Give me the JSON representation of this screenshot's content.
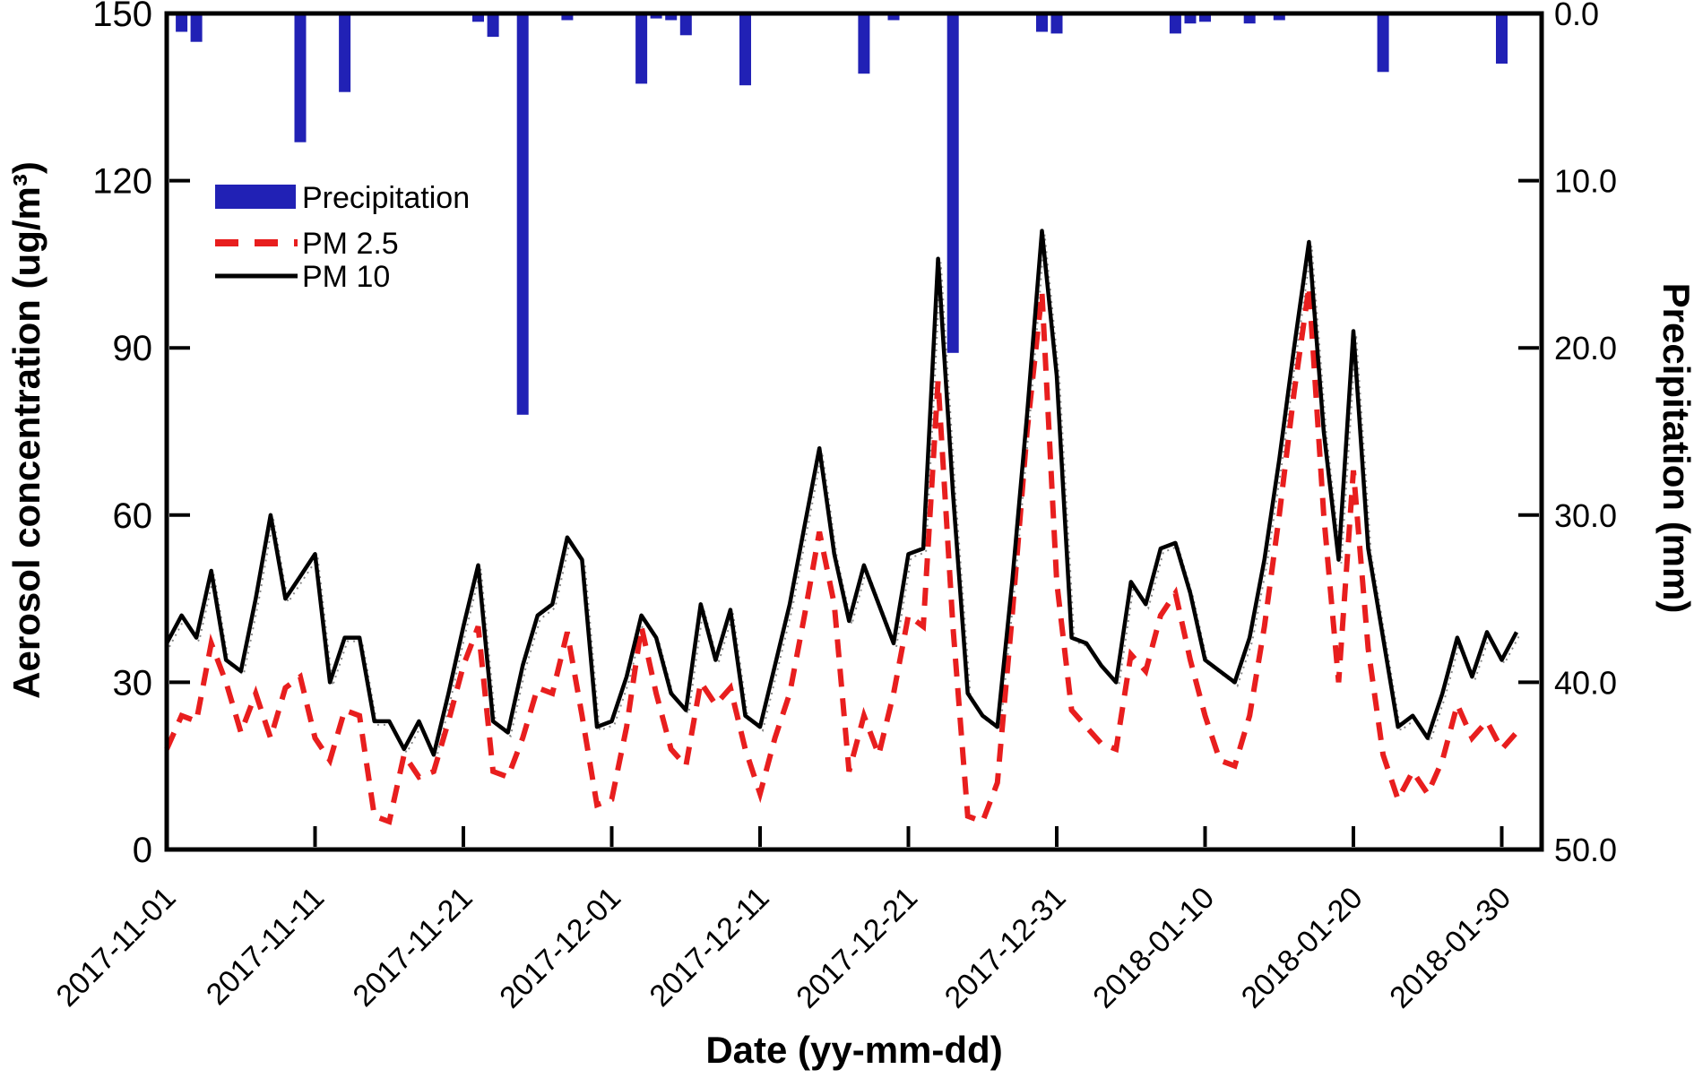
{
  "axes": {
    "left": {
      "title": "Aerosol concentration (ug/m³)",
      "tick_values": [
        0,
        30,
        60,
        90,
        120,
        150
      ],
      "tick_labels": [
        "0",
        "30",
        "60",
        "90",
        "120",
        "150"
      ],
      "range": [
        0,
        150
      ]
    },
    "right": {
      "title": "Precipitation (mm)",
      "tick_values": [
        0,
        10,
        20,
        30,
        40,
        50
      ],
      "tick_labels": [
        "0.0",
        "10.0",
        "20.0",
        "30.0",
        "40.0",
        "50.0"
      ],
      "range": [
        0,
        50
      ],
      "inverted_from_top": true
    },
    "bottom": {
      "title": "Date (yy-mm-dd)"
    }
  },
  "legend": {
    "items": [
      {
        "label": "Precipitation",
        "type": "bar",
        "color": "#2121b5"
      },
      {
        "label": "PM 2.5",
        "type": "dashed-line",
        "color": "#e81e1e"
      },
      {
        "label": "PM 10",
        "type": "solid-line",
        "color": "#000000"
      }
    ]
  },
  "colors": {
    "precipitation": "#2121b5",
    "pm25": "#e81e1e",
    "pm10": "#000000",
    "axis": "#000000"
  },
  "chart_data": {
    "type": "line+bar",
    "title": "",
    "xlabel": "Date (yy-mm-dd)",
    "ylabel_left": "Aerosol concentration (ug/m³)",
    "ylabel_right": "Precipitation (mm)",
    "ylim_left": [
      0,
      150
    ],
    "ylim_right": [
      0,
      50
    ],
    "right_axis_inverted": true,
    "grid": false,
    "legend_position": "upper-left-inside",
    "x_tick_indices": [
      0,
      10,
      20,
      30,
      40,
      50,
      60,
      70,
      80,
      90
    ],
    "x": [
      "2017-11-01",
      "2017-11-02",
      "2017-11-03",
      "2017-11-04",
      "2017-11-05",
      "2017-11-06",
      "2017-11-07",
      "2017-11-08",
      "2017-11-09",
      "2017-11-10",
      "2017-11-11",
      "2017-11-12",
      "2017-11-13",
      "2017-11-14",
      "2017-11-15",
      "2017-11-16",
      "2017-11-17",
      "2017-11-18",
      "2017-11-19",
      "2017-11-20",
      "2017-11-21",
      "2017-11-22",
      "2017-11-23",
      "2017-11-24",
      "2017-11-25",
      "2017-11-26",
      "2017-11-27",
      "2017-11-28",
      "2017-11-29",
      "2017-11-30",
      "2017-12-01",
      "2017-12-02",
      "2017-12-03",
      "2017-12-04",
      "2017-12-05",
      "2017-12-06",
      "2017-12-07",
      "2017-12-08",
      "2017-12-09",
      "2017-12-10",
      "2017-12-11",
      "2017-12-12",
      "2017-12-13",
      "2017-12-14",
      "2017-12-15",
      "2017-12-16",
      "2017-12-17",
      "2017-12-18",
      "2017-12-19",
      "2017-12-20",
      "2017-12-21",
      "2017-12-22",
      "2017-12-23",
      "2017-12-24",
      "2017-12-25",
      "2017-12-26",
      "2017-12-27",
      "2017-12-28",
      "2017-12-29",
      "2017-12-30",
      "2017-12-31",
      "2018-01-01",
      "2018-01-02",
      "2018-01-03",
      "2018-01-04",
      "2018-01-05",
      "2018-01-06",
      "2018-01-07",
      "2018-01-08",
      "2018-01-09",
      "2018-01-10",
      "2018-01-11",
      "2018-01-12",
      "2018-01-13",
      "2018-01-14",
      "2018-01-15",
      "2018-01-16",
      "2018-01-17",
      "2018-01-18",
      "2018-01-19",
      "2018-01-20",
      "2018-01-21",
      "2018-01-22",
      "2018-01-23",
      "2018-01-24",
      "2018-01-25",
      "2018-01-26",
      "2018-01-27",
      "2018-01-28",
      "2018-01-29",
      "2018-01-30",
      "2018-01-31"
    ],
    "series": [
      {
        "name": "PM 10",
        "type": "line",
        "axis": "left",
        "values": [
          37,
          42,
          38,
          50,
          34,
          32,
          45,
          60,
          45,
          49,
          53,
          30,
          38,
          38,
          23,
          23,
          18,
          23,
          17,
          28,
          40,
          51,
          23,
          21,
          33,
          42,
          44,
          56,
          52,
          22,
          23,
          31,
          42,
          38,
          28,
          25,
          44,
          34,
          43,
          24,
          22,
          33,
          44,
          58,
          72,
          53,
          41,
          51,
          44,
          37,
          53,
          54,
          106,
          64,
          28,
          24,
          22,
          48,
          78,
          111,
          85,
          38,
          37,
          33,
          30,
          48,
          44,
          54,
          55,
          46,
          34,
          32,
          30,
          38,
          52,
          70,
          90,
          109,
          75,
          52,
          93,
          54,
          38,
          22,
          24,
          20,
          28,
          38,
          31,
          39,
          34,
          39
        ]
      },
      {
        "name": "PM 2.5",
        "type": "line",
        "axis": "left",
        "values": [
          18,
          24,
          23,
          37,
          30,
          21,
          28,
          20,
          29,
          31,
          20,
          16,
          25,
          24,
          6,
          5,
          17,
          13,
          14,
          23,
          33,
          40,
          14,
          13,
          20,
          29,
          28,
          39,
          24,
          8,
          9,
          22,
          40,
          28,
          18,
          15,
          30,
          26,
          29,
          18,
          10,
          20,
          28,
          42,
          57,
          44,
          14,
          24,
          17,
          28,
          42,
          40,
          84,
          40,
          6,
          5,
          12,
          42,
          75,
          100,
          48,
          25,
          22,
          19,
          18,
          35,
          32,
          42,
          46,
          34,
          24,
          16,
          15,
          24,
          40,
          60,
          82,
          101,
          60,
          30,
          68,
          36,
          17,
          9,
          14,
          10,
          16,
          26,
          20,
          23,
          18,
          21
        ]
      },
      {
        "name": "Precipitation",
        "type": "bar",
        "axis": "right",
        "values": [
          0,
          1.1,
          1.7,
          0,
          0,
          0,
          0,
          0,
          0,
          7.7,
          0,
          0,
          4.7,
          0,
          0,
          0,
          0,
          0,
          0,
          0,
          0,
          0.5,
          1.4,
          0,
          24.0,
          0,
          0,
          0.4,
          0,
          0,
          0,
          0,
          4.2,
          0.3,
          0.4,
          1.3,
          0,
          0,
          0,
          4.3,
          0,
          0,
          0,
          0,
          0,
          0,
          0,
          3.6,
          0,
          0.4,
          0,
          0,
          0,
          20.3,
          0,
          0,
          0,
          0,
          0,
          1.1,
          1.2,
          0,
          0,
          0,
          0,
          0,
          0,
          0,
          1.2,
          0.6,
          0.5,
          0,
          0,
          0.6,
          0,
          0.4,
          0,
          0,
          0,
          0,
          0,
          0,
          3.5,
          0,
          0,
          0,
          0,
          0,
          0,
          0,
          3.0,
          0
        ]
      }
    ]
  }
}
